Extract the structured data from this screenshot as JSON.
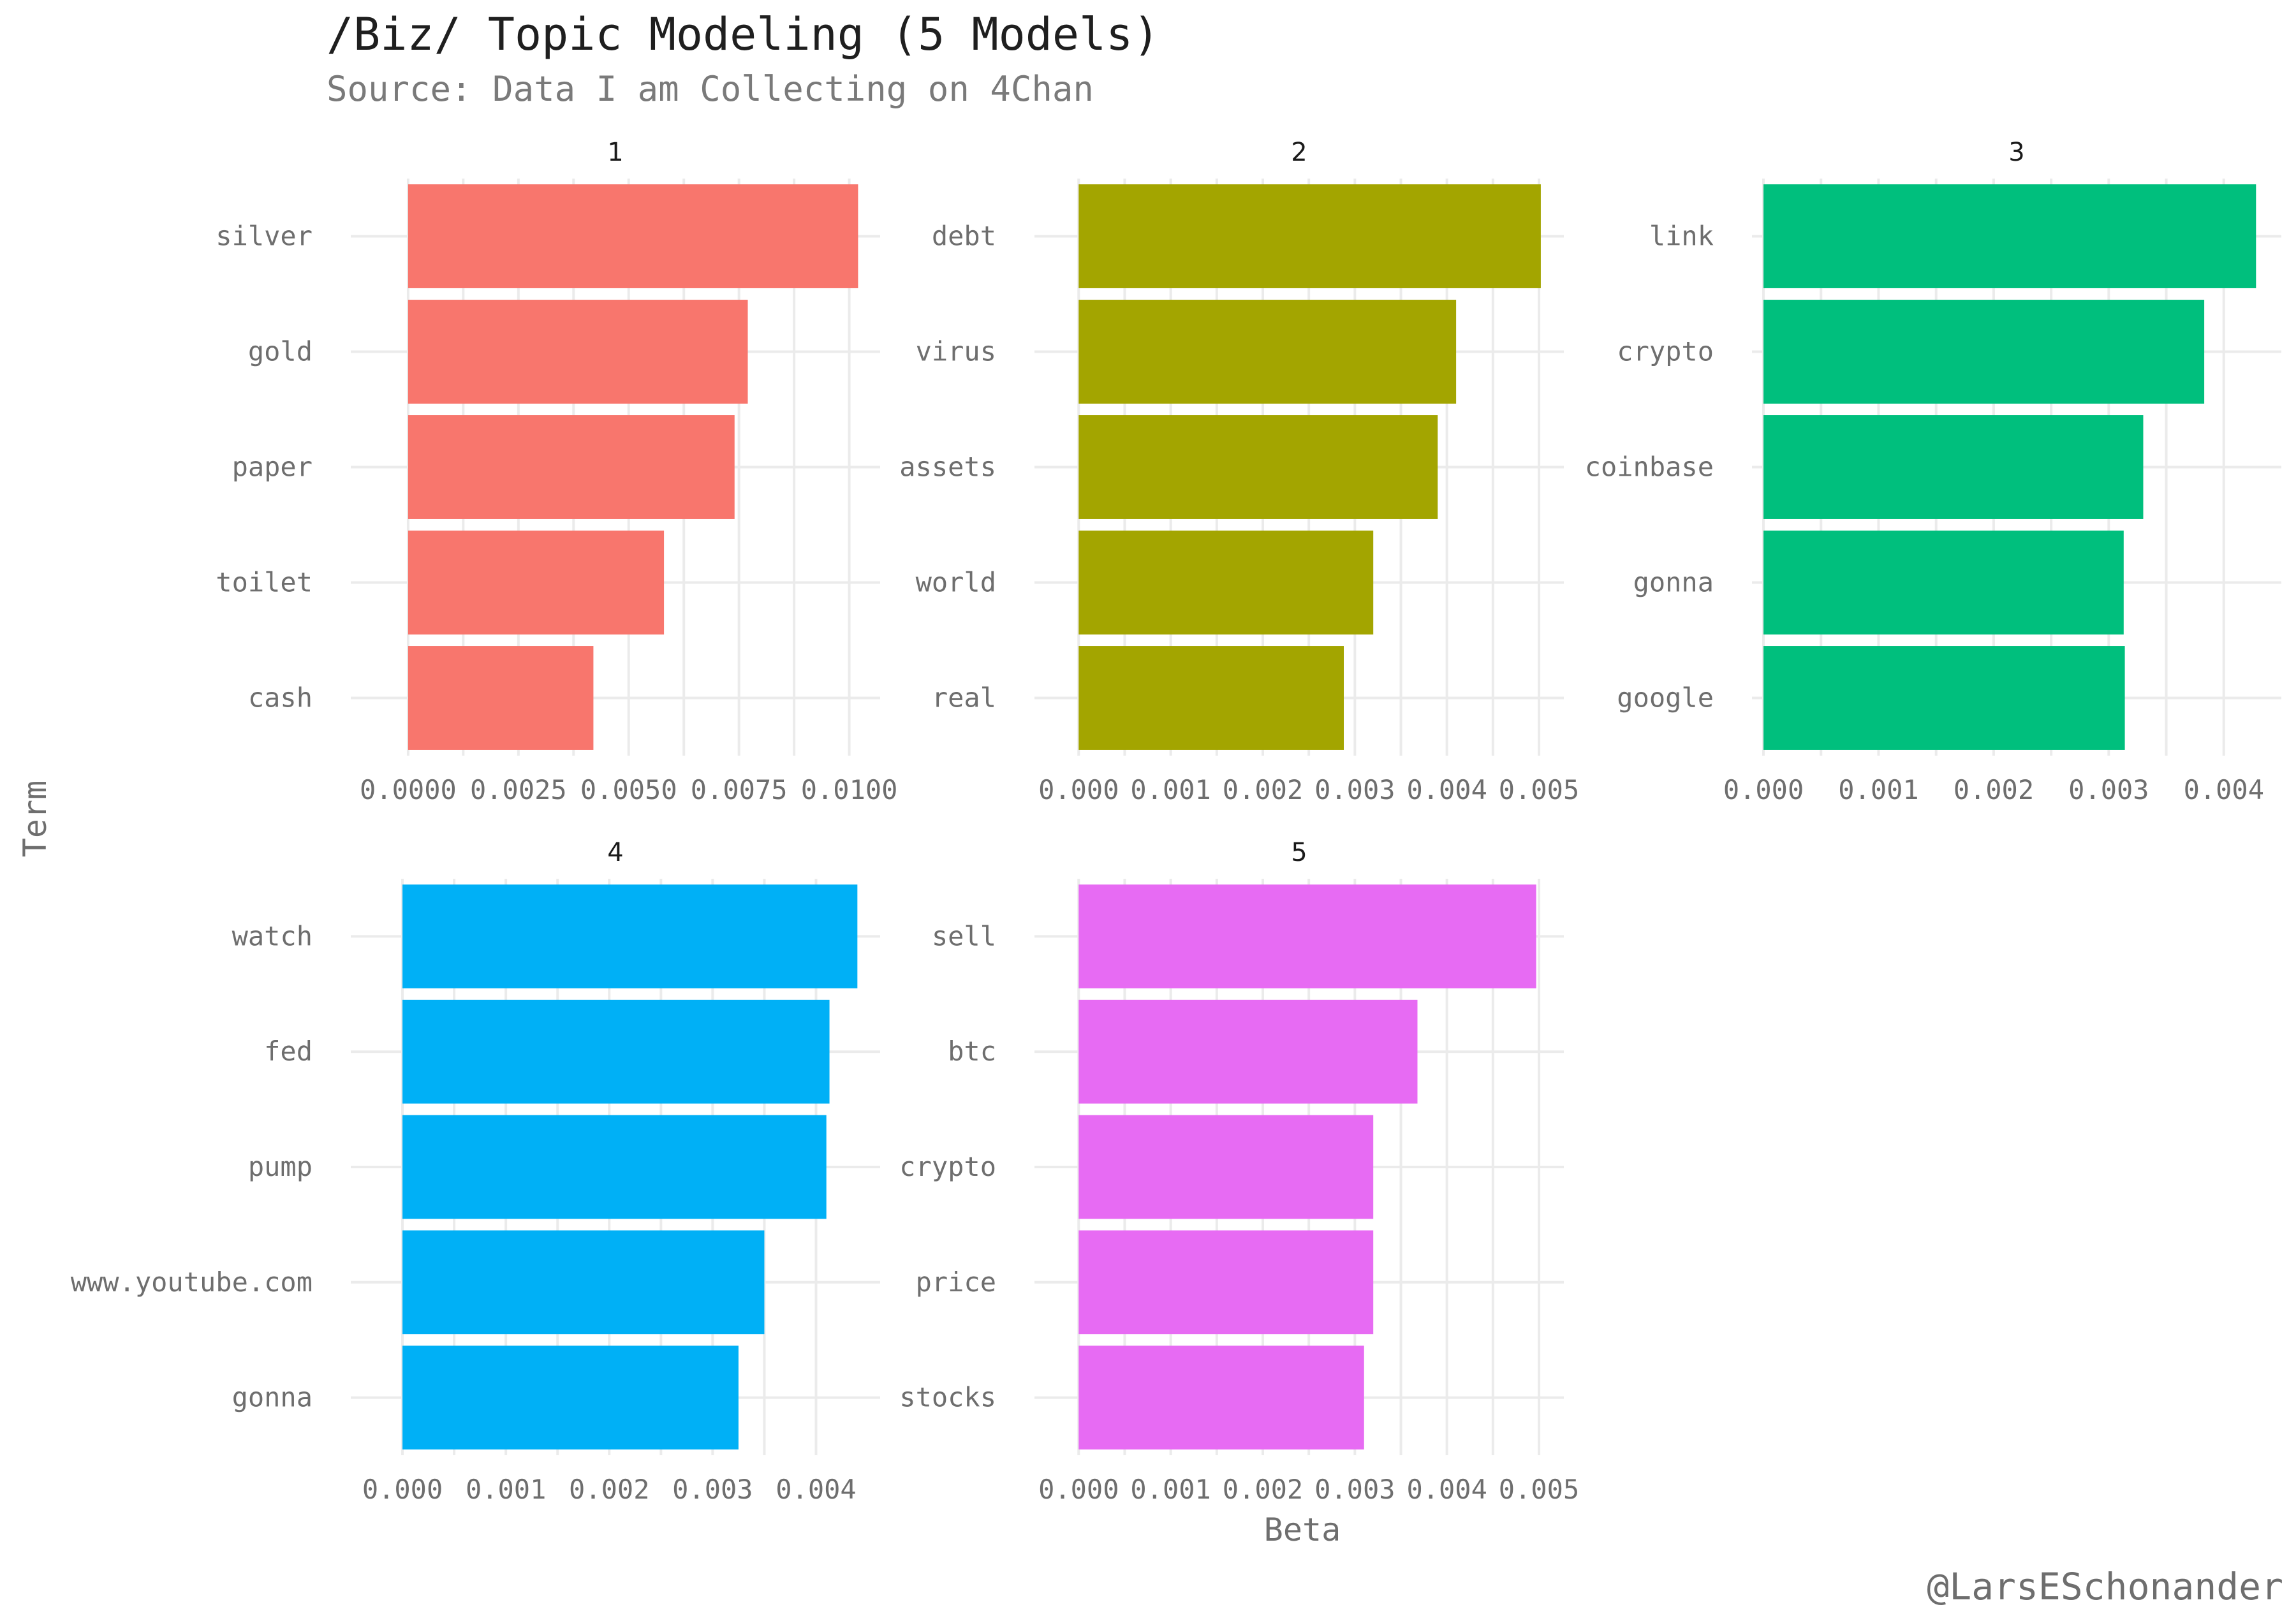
{
  "chart_data": {
    "type": "bar",
    "orientation": "horizontal",
    "title": "/Biz/ Topic Modeling (5 Models)",
    "subtitle": "Source: Data I am Collecting on 4Chan",
    "xlabel": "Beta",
    "ylabel": "Term",
    "caption": "@LarsESchonander",
    "grid": true,
    "legend": "none",
    "facets": [
      {
        "label": "1",
        "color": "#F8766D",
        "terms": [
          "silver",
          "gold",
          "paper",
          "toilet",
          "cash"
        ],
        "values": [
          0.0102,
          0.0077,
          0.0074,
          0.0058,
          0.0042
        ],
        "xlim": [
          -0.0013,
          0.0107
        ],
        "ticks": [
          0,
          0.0025,
          0.005,
          0.0075,
          0.01
        ],
        "tick_labels": [
          "0.0000",
          "0.0025",
          "0.0050",
          "0.0075",
          "0.0100"
        ]
      },
      {
        "label": "2",
        "color": "#A3A500",
        "terms": [
          "debt",
          "virus",
          "assets",
          "world",
          "real"
        ],
        "values": [
          0.00502,
          0.0041,
          0.0039,
          0.0032,
          0.00288
        ],
        "xlim": [
          -0.00048,
          0.00527
        ],
        "ticks": [
          0,
          0.001,
          0.002,
          0.003,
          0.004,
          0.005
        ],
        "tick_labels": [
          "0.000",
          "0.001",
          "0.002",
          "0.003",
          "0.004",
          "0.005"
        ]
      },
      {
        "label": "3",
        "color": "#00BF7D",
        "terms": [
          "link",
          "crypto",
          "coinbase",
          "gonna",
          "google"
        ],
        "values": [
          0.00428,
          0.00383,
          0.0033,
          0.00313,
          0.00314
        ],
        "xlim": [
          -0.0001,
          0.0045
        ],
        "ticks": [
          0,
          0.001,
          0.002,
          0.003,
          0.004
        ],
        "tick_labels": [
          "0.000",
          "0.001",
          "0.002",
          "0.003",
          "0.004"
        ]
      },
      {
        "label": "4",
        "color": "#00B0F6",
        "terms": [
          "watch",
          "fed",
          "pump",
          "www.youtube.com",
          "gonna"
        ],
        "values": [
          0.0044,
          0.00413,
          0.0041,
          0.0035,
          0.00325
        ],
        "xlim": [
          -0.0005,
          0.00462
        ],
        "ticks": [
          0,
          0.001,
          0.002,
          0.003,
          0.004
        ],
        "tick_labels": [
          "0.000",
          "0.001",
          "0.002",
          "0.003",
          "0.004"
        ]
      },
      {
        "label": "5",
        "color": "#E76BF3",
        "terms": [
          "sell",
          "btc",
          "crypto",
          "price",
          "stocks"
        ],
        "values": [
          0.00497,
          0.00368,
          0.0032,
          0.0032,
          0.0031
        ],
        "xlim": [
          -0.00048,
          0.00527
        ],
        "ticks": [
          0,
          0.001,
          0.002,
          0.003,
          0.004,
          0.005
        ],
        "tick_labels": [
          "0.000",
          "0.001",
          "0.002",
          "0.003",
          "0.004",
          "0.005"
        ]
      }
    ]
  }
}
